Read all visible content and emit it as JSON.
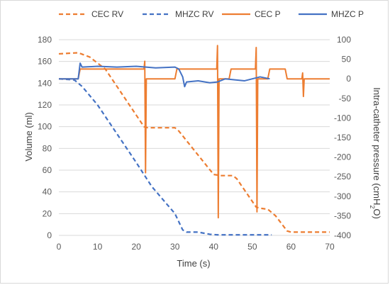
{
  "chart_data": {
    "type": "line",
    "title": "",
    "xlabel": "Time (s)",
    "ylabel_left": "Volume (ml)",
    "ylabel_right_prefix": "Intra-catheter pressure (cmH",
    "ylabel_right_sub": "2",
    "ylabel_right_suffix": "O)",
    "xlim": [
      0,
      70
    ],
    "ylim_left": [
      0,
      180
    ],
    "ylim_right": [
      -400,
      100
    ],
    "x_ticks": [
      0,
      10,
      20,
      30,
      40,
      50,
      60,
      70
    ],
    "y_left_ticks": [
      0,
      20,
      40,
      60,
      80,
      100,
      120,
      140,
      160,
      180
    ],
    "y_right_ticks": [
      -400,
      -350,
      -300,
      -250,
      -200,
      -150,
      -100,
      -50,
      0,
      50,
      100
    ],
    "grid": "horizontal",
    "legend_position": "top",
    "colors": {
      "orange": "#ED7D31",
      "blue": "#4472C4",
      "grid": "#d9d9d9",
      "axis_text": "#595959"
    },
    "series": [
      {
        "name": "CEC RV",
        "axis": "left",
        "style": "dashed",
        "color": "#ED7D31",
        "points": [
          [
            0,
            167
          ],
          [
            5,
            168
          ],
          [
            8,
            164
          ],
          [
            12,
            153
          ],
          [
            22,
            100
          ],
          [
            23,
            99
          ],
          [
            30,
            99
          ],
          [
            31,
            96
          ],
          [
            40,
            56
          ],
          [
            42,
            55
          ],
          [
            45,
            55
          ],
          [
            46,
            52
          ],
          [
            51,
            26
          ],
          [
            52,
            25
          ],
          [
            54,
            24
          ],
          [
            56,
            18
          ],
          [
            59,
            4
          ],
          [
            60,
            3
          ],
          [
            70,
            3
          ]
        ]
      },
      {
        "name": "MHZC RV",
        "axis": "left",
        "style": "dashed",
        "color": "#4472C4",
        "points": [
          [
            0,
            144
          ],
          [
            4,
            143
          ],
          [
            6,
            137
          ],
          [
            10,
            120
          ],
          [
            20,
            67
          ],
          [
            24,
            45
          ],
          [
            30,
            20
          ],
          [
            32,
            5
          ],
          [
            33,
            3
          ],
          [
            36,
            3
          ],
          [
            39,
            1
          ],
          [
            41,
            0.5
          ],
          [
            55,
            0.5
          ]
        ]
      },
      {
        "name": "CEC P",
        "axis": "right",
        "style": "solid",
        "color": "#ED7D31",
        "points": [
          [
            0,
            0
          ],
          [
            5,
            0
          ],
          [
            5.5,
            25
          ],
          [
            22,
            25
          ],
          [
            22.2,
            45
          ],
          [
            22.4,
            -240
          ],
          [
            22.6,
            0
          ],
          [
            30,
            0
          ],
          [
            30.5,
            25
          ],
          [
            40.8,
            25
          ],
          [
            41,
            85
          ],
          [
            41.2,
            -355
          ],
          [
            41.4,
            0
          ],
          [
            44,
            0
          ],
          [
            44.5,
            25
          ],
          [
            50.8,
            25
          ],
          [
            51,
            80
          ],
          [
            51.2,
            -340
          ],
          [
            51.4,
            0
          ],
          [
            54,
            0
          ],
          [
            54.5,
            25
          ],
          [
            58.5,
            25
          ],
          [
            59,
            0
          ],
          [
            62.8,
            0
          ],
          [
            63,
            15
          ],
          [
            63.2,
            -45
          ],
          [
            63.4,
            0
          ],
          [
            70,
            0
          ]
        ]
      },
      {
        "name": "MHZC P",
        "axis": "right",
        "style": "solid",
        "color": "#4472C4",
        "points": [
          [
            0,
            0
          ],
          [
            5,
            0
          ],
          [
            5.5,
            40
          ],
          [
            6,
            30
          ],
          [
            10,
            32
          ],
          [
            15,
            30
          ],
          [
            20,
            32
          ],
          [
            25,
            28
          ],
          [
            30,
            30
          ],
          [
            31,
            25
          ],
          [
            32,
            5
          ],
          [
            32.5,
            -20
          ],
          [
            33,
            -8
          ],
          [
            36,
            -5
          ],
          [
            39,
            -10
          ],
          [
            41,
            -8
          ],
          [
            43,
            0
          ],
          [
            48,
            -5
          ],
          [
            50,
            0
          ],
          [
            52,
            5
          ],
          [
            54.5,
            0
          ]
        ]
      }
    ]
  }
}
